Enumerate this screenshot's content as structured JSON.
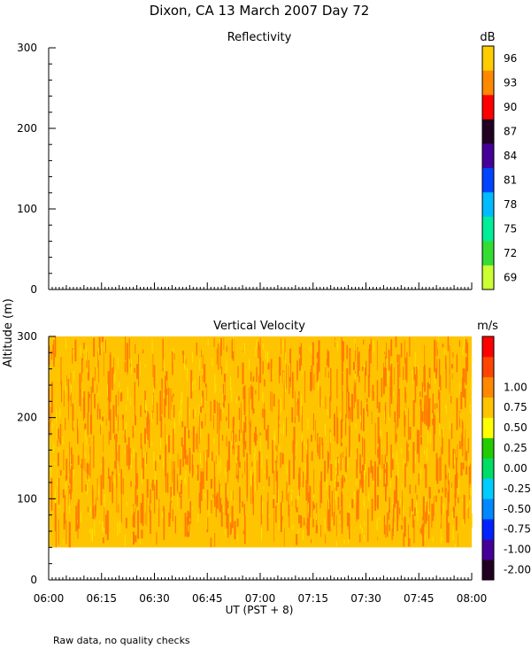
{
  "figure": {
    "title": "Dixon, CA 13 March 2007  Day  72",
    "ylabel": "Altitude (m)",
    "xlabel": "UT  (PST + 8)",
    "footnote": "Raw data, no quality checks",
    "x_ticks": [
      "06:00",
      "06:15",
      "06:30",
      "06:45",
      "07:00",
      "07:15",
      "07:30",
      "07:45",
      "08:00"
    ]
  },
  "chart_data": [
    {
      "type": "heatmap",
      "title": "Reflectivity",
      "colorbar_unit": "dB",
      "xlim": [
        "06:00",
        "08:00"
      ],
      "ylim": [
        0,
        300
      ],
      "y_ticks": [
        "0",
        "100",
        "200",
        "300"
      ],
      "has_data": false,
      "colorbar": [
        {
          "label": "69",
          "color": "#ccff33"
        },
        {
          "label": "72",
          "color": "#33dd33"
        },
        {
          "label": "75",
          "color": "#00ee99"
        },
        {
          "label": "78",
          "color": "#00bbff"
        },
        {
          "label": "81",
          "color": "#0044ff"
        },
        {
          "label": "84",
          "color": "#440099"
        },
        {
          "label": "87",
          "color": "#220022"
        },
        {
          "label": "90",
          "color": "#ff0000"
        },
        {
          "label": "93",
          "color": "#ff8800"
        },
        {
          "label": "96",
          "color": "#ffcc00"
        }
      ]
    },
    {
      "type": "heatmap",
      "title": "Vertical Velocity",
      "colorbar_unit": "m/s",
      "xlim": [
        "06:00",
        "08:00"
      ],
      "ylim": [
        0,
        300
      ],
      "y_ticks": [
        "0",
        "100",
        "200",
        "300"
      ],
      "has_data": true,
      "data_altitude_range": [
        40,
        300
      ],
      "colors": {
        "base": "#ffc400",
        "streak": "#ff7a00",
        "highlight": "#ffe300"
      },
      "colorbar": [
        {
          "label": "-2.00",
          "color": "#220022"
        },
        {
          "label": "-1.00",
          "color": "#440099"
        },
        {
          "label": "-0.75",
          "color": "#0022ff"
        },
        {
          "label": "-0.50",
          "color": "#0088ff"
        },
        {
          "label": "-0.25",
          "color": "#00ccff"
        },
        {
          "label": "0.00",
          "color": "#00dd66"
        },
        {
          "label": "0.25",
          "color": "#22cc00"
        },
        {
          "label": "0.50",
          "color": "#ffff00"
        },
        {
          "label": "0.75",
          "color": "#ffc400"
        },
        {
          "label": "1.00",
          "color": "#ff8800"
        },
        {
          "label": "",
          "color": "#ff4400"
        },
        {
          "label": "",
          "color": "#ff0000"
        }
      ]
    }
  ]
}
